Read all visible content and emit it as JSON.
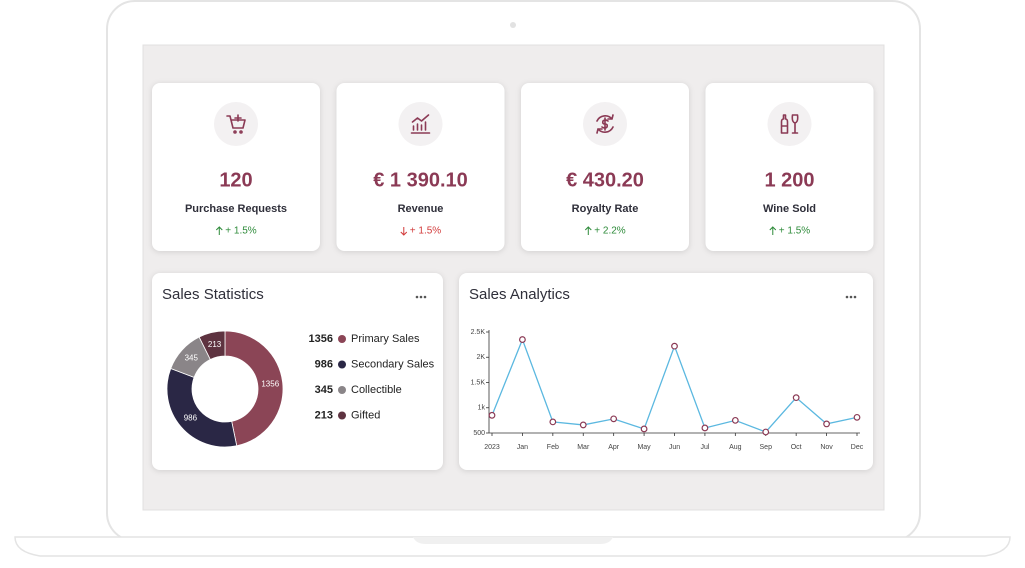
{
  "cards": [
    {
      "value": "120",
      "label": "Purchase Requests",
      "change": "+ 1.5%",
      "trend": "up"
    },
    {
      "value": "€ 1 390.10",
      "label": "Revenue",
      "change": "+ 1.5%",
      "trend": "down"
    },
    {
      "value": "€ 430.20",
      "label": "Royalty Rate",
      "change": "+ 2.2%",
      "trend": "up"
    },
    {
      "value": "1 200",
      "label": "Wine Sold",
      "change": "+ 1.5%",
      "trend": "up"
    }
  ],
  "chart_data": [
    {
      "type": "donut",
      "title": "Sales Statistics",
      "categories": [
        "Primary Sales",
        "Secondary Sales",
        "Collectible",
        "Gifted"
      ],
      "values": [
        1356,
        986,
        345,
        213
      ],
      "colors": [
        "#8b4556",
        "#2a2745",
        "#8a8588",
        "#5e3340"
      ]
    },
    {
      "type": "line",
      "title": "Sales Analytics",
      "categories": [
        "2023",
        "Jan",
        "Feb",
        "Mar",
        "Apr",
        "May",
        "Jun",
        "Jul",
        "Aug",
        "Sep",
        "Oct",
        "Nov",
        "Dec"
      ],
      "values": [
        850,
        2350,
        720,
        660,
        780,
        580,
        2220,
        600,
        750,
        520,
        1200,
        680,
        810
      ],
      "color": "#5bb8e0",
      "marker_color": "#8b3a55",
      "ylim": [
        500,
        2500
      ],
      "yticks": [
        500,
        {
          "value": 1000,
          "label": "1k"
        },
        {
          "value": 1500,
          "label": "1.5K"
        },
        {
          "value": 2000,
          "label": "2K"
        },
        {
          "value": 2500,
          "label": "2.5K"
        }
      ]
    }
  ]
}
